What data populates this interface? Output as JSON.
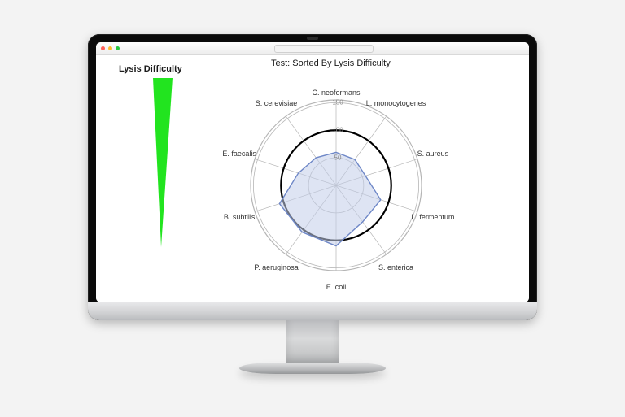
{
  "chart": {
    "type": "radar",
    "title": "Test: Sorted By Lysis Difficulty",
    "title_fontsize": 11,
    "title_color": "#1a1a1a",
    "legend_label": "Lysis Difficulty",
    "legend_fontsize": 11,
    "background_color": "#ffffff",
    "grid_color": "#b5b5b5",
    "ring_label_color": "#888888",
    "axis_label_color": "#333333",
    "axis_label_fontsize": 9,
    "ring_values": [
      50,
      100,
      150
    ],
    "rmax": 155,
    "categories": [
      "C. neoformans",
      "L. monocytogenes",
      "S. aureus",
      "L. fermentum",
      "S. enterica",
      "E. coli",
      "P. aeruginosa",
      "B. subtilis",
      "E. faecalis",
      "S. cerevisiae"
    ],
    "reference_circle": {
      "radius": 100,
      "stroke": "#000000",
      "stroke_width": 2.2
    },
    "series": {
      "fill": "#c3cdea",
      "fill_opacity": 0.55,
      "stroke": "#6e87c7",
      "stroke_width": 1.4,
      "values": [
        60,
        58,
        56,
        85,
        82,
        110,
        105,
        108,
        72,
        62
      ]
    },
    "wedge_indicator": {
      "fill": "#22e41f",
      "stroke": "none"
    }
  },
  "device": {
    "type": "desktop-monitor"
  }
}
